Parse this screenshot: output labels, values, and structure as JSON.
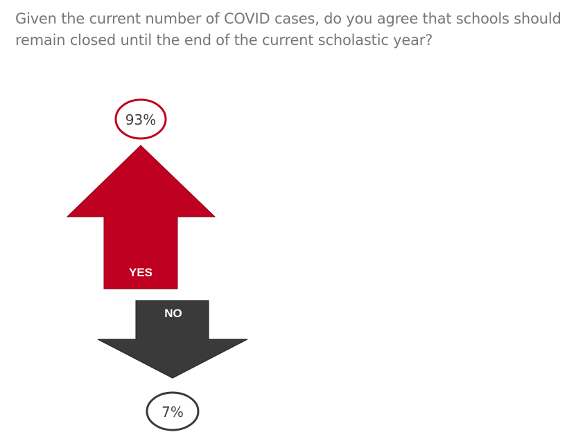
{
  "question": "Given the current number of COVID cases, do you agree that schools should remain closed until the end of the current scholastic year?",
  "colors": {
    "yes": "#c00020",
    "no": "#3a3a3a",
    "question_text": "#767676",
    "yes_ring": "#c00020",
    "no_ring": "#3a3a3a"
  },
  "chart_data": {
    "type": "bar",
    "title": "Given the current number of COVID cases, do you agree that schools should remain closed until the end of the current scholastic year?",
    "categories": [
      "YES",
      "NO"
    ],
    "values": [
      93,
      7
    ],
    "labels": [
      "93%",
      "7%"
    ],
    "unit": "%",
    "legend": "none",
    "grid": false
  }
}
